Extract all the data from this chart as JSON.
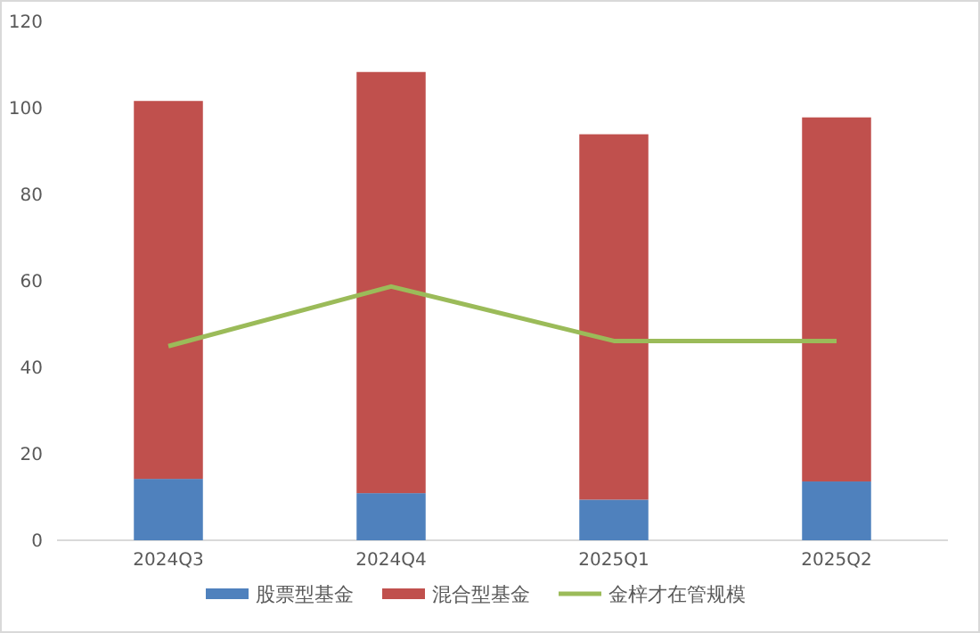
{
  "chart_data": {
    "type": "bar",
    "stacked": true,
    "categories": [
      "2024Q3",
      "2024Q4",
      "2025Q1",
      "2025Q2"
    ],
    "series": [
      {
        "name": "股票型基金",
        "color": "#4f81bd",
        "values": [
          14.2,
          10.9,
          9.4,
          13.6
        ]
      },
      {
        "name": "混合型基金",
        "color": "#c0504d",
        "values": [
          87.4,
          97.4,
          84.5,
          84.2
        ]
      },
      {
        "name": "金梓才在管规模",
        "type": "line",
        "color": "#9bbb59",
        "values": [
          44.9,
          58.7,
          46.1,
          46.1
        ]
      }
    ],
    "ylim": [
      0,
      120
    ],
    "yticks": [
      0,
      20,
      40,
      60,
      80,
      100,
      120
    ],
    "grid": false,
    "legend": "bottom",
    "marker": "none"
  }
}
